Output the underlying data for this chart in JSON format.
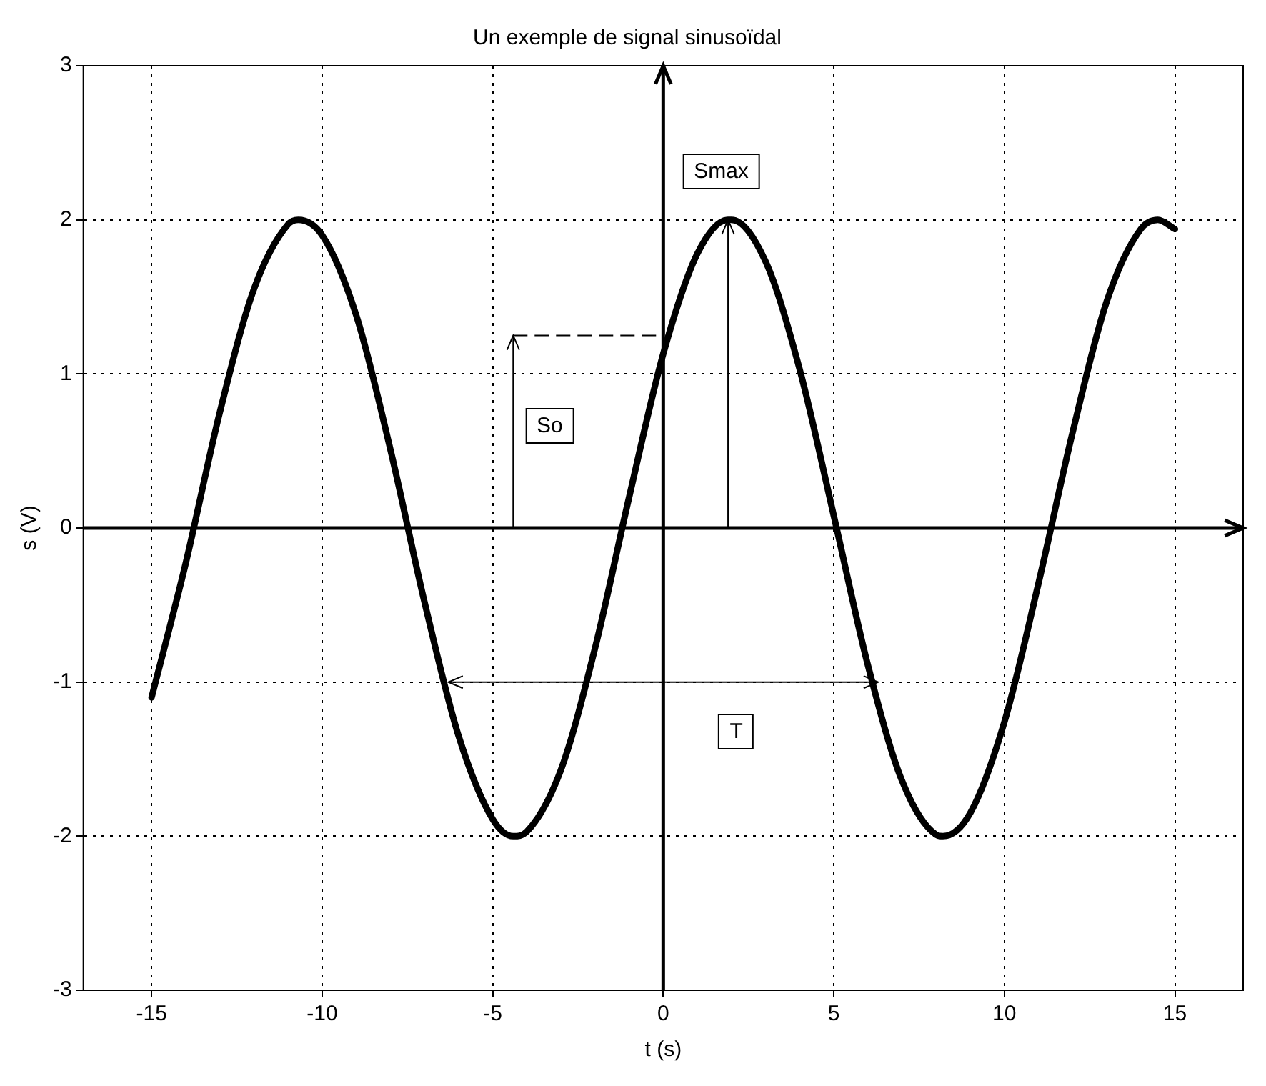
{
  "chart_data": {
    "type": "line",
    "title": "Un exemple de signal sinusoïdal",
    "xlabel": "t (s)",
    "ylabel": "s (V)",
    "series": [
      {
        "color": "#000000",
        "x": [
          -15,
          -14,
          -13,
          -12,
          -11,
          -10.7,
          -10,
          -9,
          -8,
          -7,
          -6,
          -5,
          -4.4,
          -4,
          -3,
          -2,
          -1,
          0,
          1,
          1.9,
          2,
          3,
          4,
          5,
          6,
          7,
          8,
          8.2,
          9,
          10,
          11,
          12,
          13,
          14,
          14.5,
          15
        ],
        "values": [
          -1.1,
          -0.23,
          0.75,
          1.55,
          1.97,
          2,
          1.9,
          1.38,
          0.51,
          -0.48,
          -1.35,
          -1.89,
          -2,
          -1.97,
          -1.57,
          -0.78,
          0.2,
          1.13,
          1.78,
          2,
          2,
          1.73,
          1.03,
          0.08,
          -0.89,
          -1.64,
          -1.99,
          -2,
          -1.85,
          -1.26,
          -0.36,
          0.62,
          1.47,
          1.94,
          2,
          1.94
        ]
      }
    ],
    "xlim": [
      -17,
      17
    ],
    "xticks": [
      -15,
      -10,
      -5,
      0,
      5,
      10,
      15
    ],
    "ylim": [
      -3,
      3
    ],
    "yticks": [
      -3,
      -2,
      -1,
      0,
      1,
      2,
      3
    ],
    "grid": true,
    "marker": "none",
    "line_style": "solid",
    "legend": false,
    "annotations": [
      "Smax",
      "So",
      "T"
    ]
  }
}
